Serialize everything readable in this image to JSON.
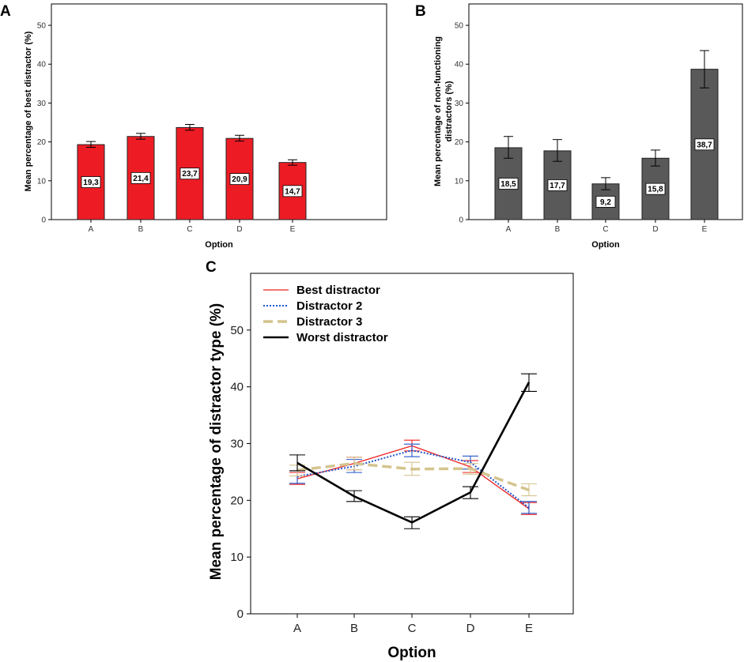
{
  "chart_data": [
    {
      "panel": "A",
      "type": "bar",
      "categories": [
        "A",
        "B",
        "C",
        "D",
        "E"
      ],
      "values": [
        19.3,
        21.4,
        23.7,
        20.9,
        14.7
      ],
      "value_labels": [
        "19,3",
        "21,4",
        "23,7",
        "20,9",
        "14,7"
      ],
      "errors": [
        [
          18.6,
          20.1
        ],
        [
          20.7,
          22.2
        ],
        [
          23.0,
          24.5
        ],
        [
          20.2,
          21.7
        ],
        [
          14.0,
          15.4
        ]
      ],
      "xlabel": "Option",
      "ylabel": "Mean percentage of best distractor (%)",
      "ylim": [
        0,
        55
      ],
      "yticks": [
        0,
        10,
        20,
        30,
        40,
        50
      ],
      "bar_color": "#ed1c24",
      "grid": false
    },
    {
      "panel": "B",
      "type": "bar",
      "categories": [
        "A",
        "B",
        "C",
        "D",
        "E"
      ],
      "values": [
        18.5,
        17.7,
        9.2,
        15.8,
        38.7
      ],
      "value_labels": [
        "18,5",
        "17,7",
        "9,2",
        "15,8",
        "38,7"
      ],
      "errors": [
        [
          15.8,
          21.4
        ],
        [
          15.0,
          20.6
        ],
        [
          7.7,
          10.8
        ],
        [
          13.8,
          17.9
        ],
        [
          33.9,
          43.5
        ]
      ],
      "xlabel": "Option",
      "ylabel_lines": [
        "Mean percentage of non-functioning",
        "distractors (%)"
      ],
      "ylim": [
        0,
        55
      ],
      "yticks": [
        0,
        10,
        20,
        30,
        40,
        50
      ],
      "bar_color": "#595959",
      "grid": false
    },
    {
      "panel": "C",
      "type": "line",
      "x": [
        "A",
        "B",
        "C",
        "D",
        "E"
      ],
      "xlabel": "Option",
      "ylabel": "Mean percentage of distractor type (%)",
      "ylim": [
        0,
        60
      ],
      "yticks": [
        0,
        10,
        20,
        30,
        40,
        50
      ],
      "legend_position": "top-left",
      "series": [
        {
          "name": "Best distractor",
          "color": "#ee2222",
          "style": "solid",
          "values": [
            23.8,
            26.5,
            29.6,
            25.9,
            18.5
          ],
          "errors": [
            [
              22.8,
              24.9
            ],
            [
              25.4,
              27.6
            ],
            [
              28.7,
              30.6
            ],
            [
              24.9,
              27.0
            ],
            [
              17.5,
              19.6
            ]
          ]
        },
        {
          "name": "Distractor 2",
          "color": "#2255cc",
          "style": "dotted",
          "values": [
            24.2,
            26.0,
            28.8,
            26.7,
            18.7
          ],
          "errors": [
            [
              23.0,
              25.2
            ],
            [
              24.9,
              27.2
            ],
            [
              27.7,
              29.9
            ],
            [
              25.5,
              27.8
            ],
            [
              17.7,
              19.8
            ]
          ]
        },
        {
          "name": "Distractor 3",
          "color": "#d4c48e",
          "style": "dashed",
          "values": [
            25.3,
            26.5,
            25.5,
            25.6,
            21.8
          ],
          "errors": [
            [
              24.3,
              26.2
            ],
            [
              25.4,
              27.6
            ],
            [
              24.4,
              26.7
            ],
            [
              24.6,
              26.5
            ],
            [
              20.8,
              22.9
            ]
          ]
        },
        {
          "name": "Worst distractor",
          "color": "#000000",
          "style": "bold",
          "values": [
            26.6,
            20.7,
            16.1,
            21.4,
            40.8
          ],
          "errors": [
            [
              25.2,
              28.0
            ],
            [
              19.8,
              21.7
            ],
            [
              15.0,
              17.1
            ],
            [
              20.3,
              22.4
            ],
            [
              39.2,
              42.3
            ]
          ]
        }
      ]
    }
  ]
}
